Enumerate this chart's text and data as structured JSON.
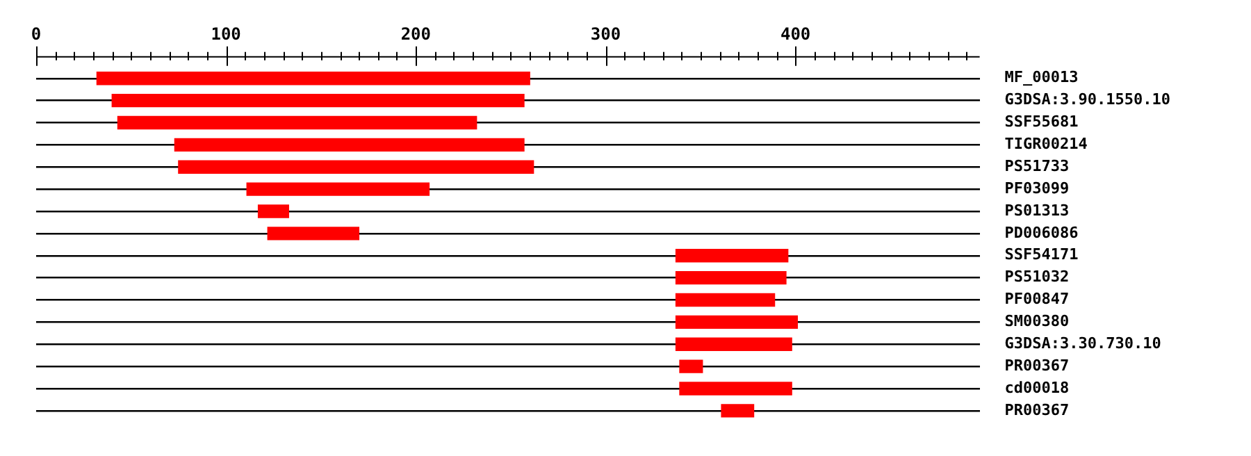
{
  "chart_data": {
    "type": "bar",
    "orientation": "horizontal",
    "color": "#ff0000",
    "grid": "y",
    "legend": false,
    "categories": [
      "MF_00013",
      "G3DSA:3.90.1550.10",
      "SSF55681",
      "TIGR00214",
      "PS51733",
      "PF03099",
      "PS01313",
      "PD006086",
      "SSF54171",
      "PS51032",
      "PF00847",
      "SM00380",
      "G3DSA:3.30.730.10",
      "PR00367",
      "cd00018",
      "PR00367"
    ],
    "base": [
      32,
      40,
      43,
      73,
      75,
      111,
      117,
      122,
      337,
      337,
      337,
      337,
      337,
      339,
      339,
      361
    ],
    "values": [
      228,
      217,
      189,
      184,
      187,
      96,
      16,
      48,
      59,
      58,
      52,
      64,
      61,
      12,
      59,
      17
    ],
    "xlim": [
      0,
      497
    ],
    "xticks": [
      0,
      {
        "value": 10,
        "label": null
      },
      {
        "value": 20,
        "label": null
      },
      {
        "value": 30,
        "label": null
      },
      {
        "value": 40,
        "label": null
      },
      {
        "value": 50,
        "label": null
      },
      {
        "value": 60,
        "label": null
      },
      {
        "value": 70,
        "label": null
      },
      {
        "value": 80,
        "label": null
      },
      {
        "value": 90,
        "label": null
      },
      100,
      {
        "value": 110,
        "label": null
      },
      {
        "value": 120,
        "label": null
      },
      {
        "value": 130,
        "label": null
      },
      {
        "value": 140,
        "label": null
      },
      {
        "value": 150,
        "label": null
      },
      {
        "value": 160,
        "label": null
      },
      {
        "value": 170,
        "label": null
      },
      {
        "value": 180,
        "label": null
      },
      {
        "value": 190,
        "label": null
      },
      200,
      {
        "value": 210,
        "label": null
      },
      {
        "value": 220,
        "label": null
      },
      {
        "value": 230,
        "label": null
      },
      {
        "value": 240,
        "label": null
      },
      {
        "value": 250,
        "label": null
      },
      {
        "value": 260,
        "label": null
      },
      {
        "value": 270,
        "label": null
      },
      {
        "value": 280,
        "label": null
      },
      {
        "value": 290,
        "label": null
      },
      300,
      {
        "value": 310,
        "label": null
      },
      {
        "value": 320,
        "label": null
      },
      {
        "value": 330,
        "label": null
      },
      {
        "value": 340,
        "label": null
      },
      {
        "value": 350,
        "label": null
      },
      {
        "value": 360,
        "label": null
      },
      {
        "value": 370,
        "label": null
      },
      {
        "value": 380,
        "label": null
      },
      {
        "value": 390,
        "label": null
      },
      400,
      {
        "value": 410,
        "label": null
      },
      {
        "value": 420,
        "label": null
      },
      {
        "value": 430,
        "label": null
      },
      {
        "value": 440,
        "label": null
      },
      {
        "value": 450,
        "label": null
      },
      {
        "value": 460,
        "label": null
      },
      {
        "value": 470,
        "label": null
      },
      {
        "value": 480,
        "label": null
      },
      {
        "value": 490,
        "label": null
      }
    ]
  }
}
